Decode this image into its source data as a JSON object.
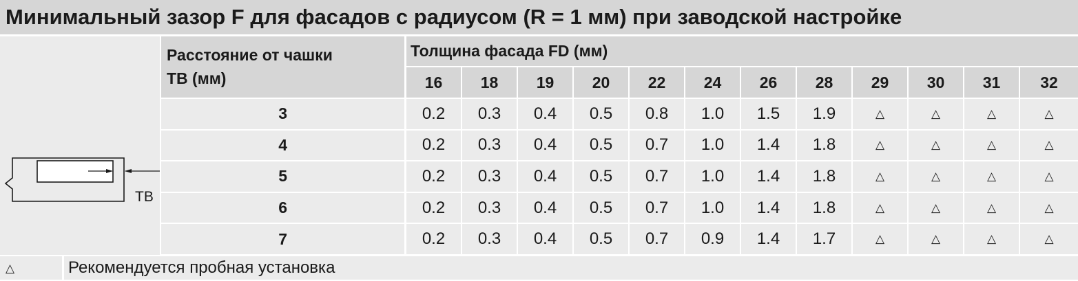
{
  "title": "Минимальный зазор F для фасадов с радиусом (R = 1 мм) при заводской настройке",
  "diagram": {
    "label": "TB"
  },
  "table": {
    "row_header_line1": "Расстояние от чашки",
    "row_header_line2": "TB (мм)",
    "column_group_header": "Толщина фасада FD (мм)",
    "columns": [
      "16",
      "18",
      "19",
      "20",
      "22",
      "24",
      "26",
      "28",
      "29",
      "30",
      "31",
      "32"
    ],
    "rows": [
      {
        "tb": "3",
        "values": [
          "0.2",
          "0.3",
          "0.4",
          "0.5",
          "0.8",
          "1.0",
          "1.5",
          "1.9",
          "△",
          "△",
          "△",
          "△"
        ]
      },
      {
        "tb": "4",
        "values": [
          "0.2",
          "0.3",
          "0.4",
          "0.5",
          "0.7",
          "1.0",
          "1.4",
          "1.8",
          "△",
          "△",
          "△",
          "△"
        ]
      },
      {
        "tb": "5",
        "values": [
          "0.2",
          "0.3",
          "0.4",
          "0.5",
          "0.7",
          "1.0",
          "1.4",
          "1.8",
          "△",
          "△",
          "△",
          "△"
        ]
      },
      {
        "tb": "6",
        "values": [
          "0.2",
          "0.3",
          "0.4",
          "0.5",
          "0.7",
          "1.0",
          "1.4",
          "1.8",
          "△",
          "△",
          "△",
          "△"
        ]
      },
      {
        "tb": "7",
        "values": [
          "0.2",
          "0.3",
          "0.4",
          "0.5",
          "0.7",
          "0.9",
          "1.4",
          "1.7",
          "△",
          "△",
          "△",
          "△"
        ]
      }
    ]
  },
  "legend": {
    "symbol": "△",
    "text": "Рекомендуется пробная установка"
  }
}
